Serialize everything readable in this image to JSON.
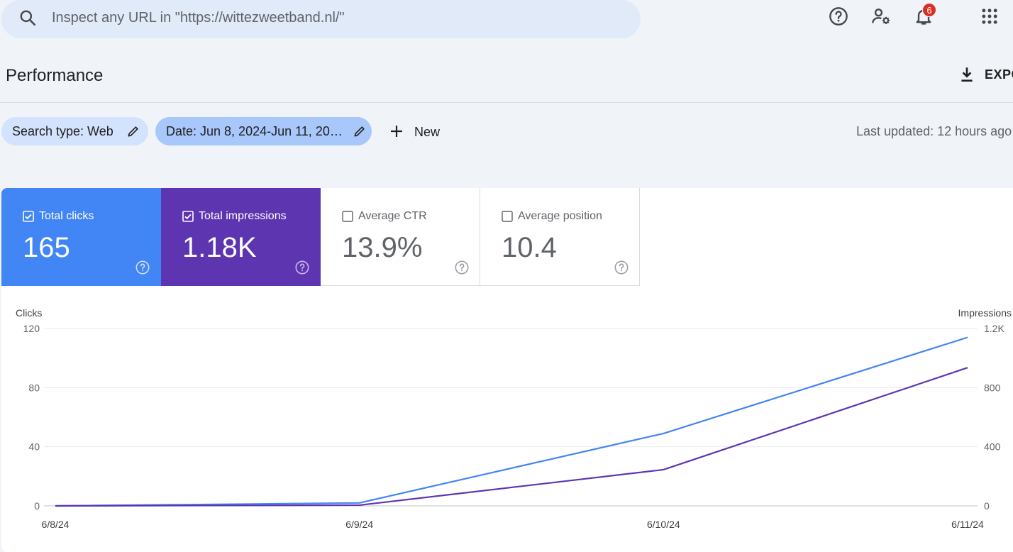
{
  "search": {
    "placeholder": "Inspect any URL in \"https://wittezweetband.nl/\"",
    "icon": "search-icon"
  },
  "topbar": {
    "icons": [
      "help-icon",
      "manage-users-icon",
      "notifications-icon",
      "apps-grid-icon"
    ],
    "notification_count": "6"
  },
  "page": {
    "title": "Performance",
    "export_label": "EXPO"
  },
  "filters": {
    "search_type": "Search type: Web",
    "date": "Date: Jun 8, 2024-Jun 11, 20…",
    "new_label": "New",
    "last_updated": "Last updated: 12 hours ago"
  },
  "metrics": [
    {
      "label": "Total clicks",
      "value": "165",
      "checked": true,
      "color": "#4285f4"
    },
    {
      "label": "Total impressions",
      "value": "1.18K",
      "checked": true,
      "color": "#5e35b1"
    },
    {
      "label": "Average CTR",
      "value": "13.9%",
      "checked": false
    },
    {
      "label": "Average position",
      "value": "10.4",
      "checked": false
    }
  ],
  "chart_data": {
    "type": "line",
    "categories": [
      "6/8/24",
      "6/9/24",
      "6/10/24",
      "6/11/24"
    ],
    "left_axis": {
      "label": "Clicks",
      "ticks": [
        "0",
        "40",
        "80",
        "120"
      ],
      "range": [
        0,
        120
      ]
    },
    "right_axis": {
      "label": "Impressions",
      "ticks": [
        "0",
        "400",
        "800",
        "1.2K"
      ],
      "range": [
        0,
        1200
      ]
    },
    "grid": true,
    "series": [
      {
        "name": "Total clicks",
        "axis": "left",
        "color": "#4285f4",
        "values": [
          0,
          2,
          49,
          114
        ]
      },
      {
        "name": "Total impressions",
        "axis": "right",
        "color": "#5e35b1",
        "values": [
          0,
          5,
          245,
          935
        ]
      }
    ]
  }
}
